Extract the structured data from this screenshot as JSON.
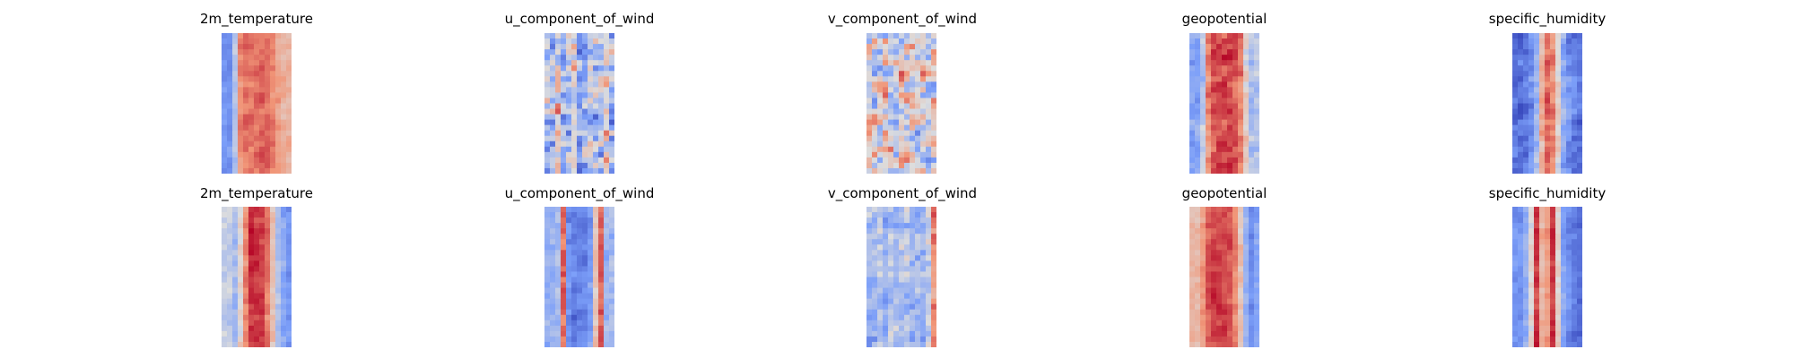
{
  "chart_data": [
    {
      "type": "heatmap",
      "title": "2m_temperature",
      "row": 0,
      "col": 0,
      "profile": [
        -0.55,
        -0.2,
        0.55,
        0.62,
        0.6,
        0.62,
        0.65,
        0.62,
        0.55,
        0.42,
        0.35,
        0.3
      ],
      "noise": 0.18,
      "seed": 11
    },
    {
      "type": "heatmap",
      "title": "u_component_of_wind",
      "row": 0,
      "col": 1,
      "profile": [
        -0.2,
        0.15,
        -0.3,
        -0.2,
        0.1,
        -0.35,
        -0.3,
        -0.15,
        -0.3,
        -0.2,
        0.1,
        -0.35
      ],
      "noise": 0.75,
      "seed": 23
    },
    {
      "type": "heatmap",
      "title": "v_component_of_wind",
      "row": 0,
      "col": 2,
      "profile": [
        0.05,
        -0.05,
        0.1,
        0.0,
        -0.1,
        0.05,
        0.0,
        0.1,
        -0.05,
        0.05,
        -0.1,
        0.0
      ],
      "noise": 0.85,
      "seed": 37
    },
    {
      "type": "heatmap",
      "title": "geopotential",
      "row": 0,
      "col": 3,
      "profile": [
        -0.45,
        -0.2,
        0.5,
        0.72,
        0.78,
        0.8,
        0.8,
        0.75,
        0.6,
        0.1,
        -0.25,
        -0.2
      ],
      "noise": 0.28,
      "seed": 41
    },
    {
      "type": "heatmap",
      "title": "specific_humidity",
      "row": 0,
      "col": 4,
      "profile": [
        -0.75,
        -0.7,
        -0.6,
        -0.3,
        0.35,
        0.72,
        0.55,
        0.05,
        -0.4,
        -0.6,
        -0.72,
        -0.78
      ],
      "noise": 0.3,
      "seed": 53
    },
    {
      "type": "heatmap",
      "title": "2m_temperature",
      "row": 1,
      "col": 0,
      "profile": [
        -0.15,
        -0.3,
        0.05,
        0.55,
        0.85,
        0.82,
        0.78,
        0.6,
        0.2,
        -0.25,
        -0.45,
        -0.55
      ],
      "noise": 0.22,
      "seed": 61
    },
    {
      "type": "heatmap",
      "title": "u_component_of_wind",
      "row": 1,
      "col": 1,
      "profile": [
        -0.35,
        -0.3,
        0.65,
        -0.6,
        -0.72,
        -0.7,
        -0.65,
        -0.5,
        0.2,
        0.72,
        -0.3,
        -0.25
      ],
      "noise": 0.25,
      "seed": 71
    },
    {
      "type": "heatmap",
      "title": "v_component_of_wind",
      "row": 1,
      "col": 2,
      "profile": [
        -0.3,
        -0.2,
        -0.35,
        -0.25,
        -0.3,
        -0.2,
        -0.15,
        -0.3,
        -0.25,
        -0.35,
        -0.1,
        0.55
      ],
      "noise": 0.4,
      "seed": 83
    },
    {
      "type": "heatmap",
      "title": "geopotential",
      "row": 1,
      "col": 3,
      "profile": [
        0.3,
        0.45,
        0.7,
        0.78,
        0.78,
        0.75,
        0.72,
        0.55,
        0.2,
        -0.35,
        -0.6,
        -0.45
      ],
      "noise": 0.18,
      "seed": 97
    },
    {
      "type": "heatmap",
      "title": "specific_humidity",
      "row": 1,
      "col": 4,
      "profile": [
        -0.55,
        -0.4,
        0.05,
        0.82,
        0.3,
        0.45,
        0.85,
        0.1,
        -0.45,
        -0.6,
        -0.72,
        -0.78
      ],
      "noise": 0.2,
      "seed": 101
    }
  ]
}
